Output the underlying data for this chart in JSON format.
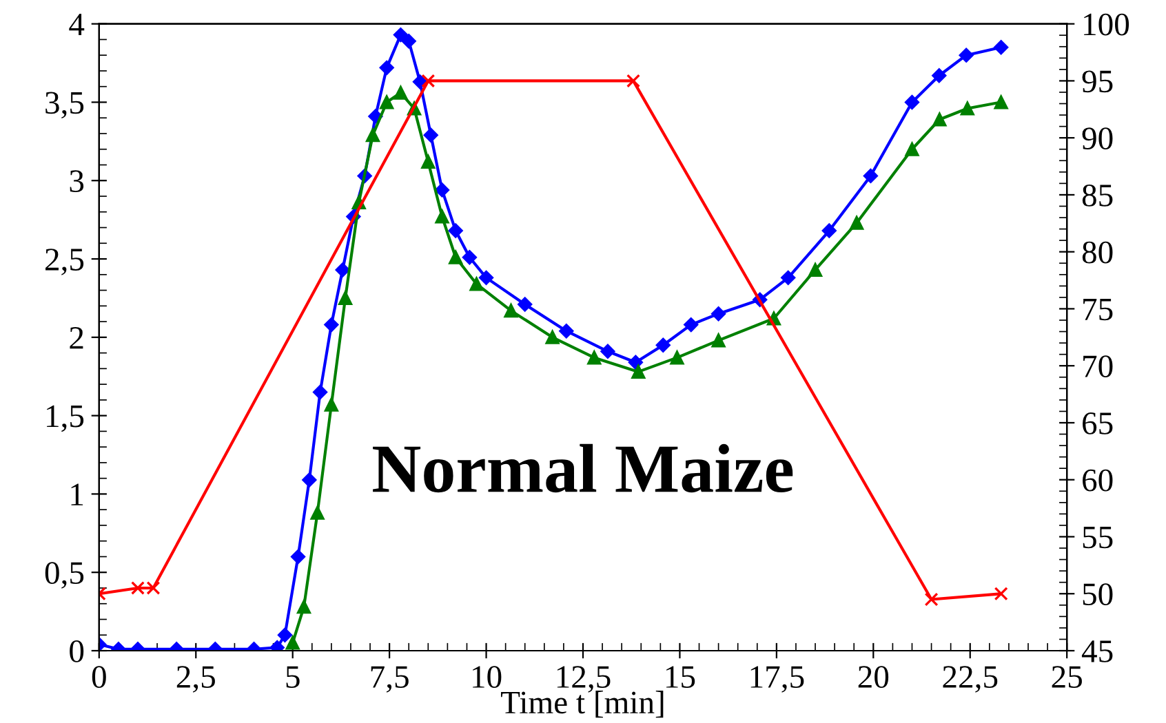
{
  "chart_data": {
    "type": "line",
    "xlabel": "Time t [min]",
    "annotations": [
      "Normal Maize"
    ],
    "grid": false,
    "legend": false,
    "line_style": "solid",
    "xlim": [
      0,
      25
    ],
    "xticks": [
      0,
      {
        "value": 2.5,
        "label": "2,5"
      },
      5,
      {
        "value": 7.5,
        "label": "7,5"
      },
      10,
      {
        "value": 12.5,
        "label": "12,5"
      },
      15,
      {
        "value": 17.5,
        "label": "17,5"
      },
      20,
      {
        "value": 22.5,
        "label": "22,5"
      },
      25
    ],
    "ylim": [
      0,
      4
    ],
    "yticks": [
      0,
      {
        "value": 0.5,
        "label": "0,5"
      },
      1,
      {
        "value": 1.5,
        "label": "1,5"
      },
      2,
      {
        "value": 2.5,
        "label": "2,5"
      },
      3,
      {
        "value": 3.5,
        "label": "3,5"
      },
      4
    ],
    "y2lim": [
      45,
      100
    ],
    "y2ticks": [
      45,
      50,
      55,
      60,
      65,
      70,
      75,
      80,
      85,
      90,
      95,
      100
    ],
    "series": [
      {
        "color": "#0000ff",
        "marker": "diamond",
        "x": [
          0,
          0.5,
          1,
          2,
          3,
          4,
          4.6,
          4.8,
          5.14,
          5.43,
          5.71,
          6.0,
          6.29,
          6.57,
          6.86,
          7.14,
          7.43,
          7.79,
          8.0,
          8.29,
          8.57,
          8.86,
          9.21,
          9.57,
          10,
          11,
          12.07,
          13.14,
          13.86,
          14.57,
          15.29,
          16,
          17.07,
          17.8,
          18.86,
          19.93,
          21.0,
          21.7,
          22.4,
          23.3
        ],
        "values": [
          0.04,
          0.01,
          0.01,
          0.01,
          0.01,
          0.01,
          0.02,
          0.1,
          0.6,
          1.09,
          1.65,
          2.08,
          2.43,
          2.77,
          3.03,
          3.41,
          3.72,
          3.93,
          3.89,
          3.63,
          3.29,
          2.94,
          2.68,
          2.51,
          2.38,
          2.21,
          2.04,
          1.91,
          1.84,
          1.95,
          2.08,
          2.15,
          2.24,
          2.38,
          2.68,
          3.03,
          3.5,
          3.67,
          3.8,
          3.85
        ]
      },
      {
        "color": "#008000",
        "marker": "triangle",
        "x": [
          5,
          5.29,
          5.64,
          6.0,
          6.36,
          6.71,
          7.07,
          7.43,
          7.79,
          8.14,
          8.5,
          8.86,
          9.21,
          9.75,
          10.64,
          11.71,
          12.79,
          13.93,
          14.93,
          16,
          17.43,
          18.5,
          19.57,
          21.0,
          21.71,
          22.43,
          23.3
        ],
        "values": [
          0.05,
          0.28,
          0.88,
          1.57,
          2.25,
          2.86,
          3.29,
          3.5,
          3.56,
          3.46,
          3.12,
          2.77,
          2.51,
          2.34,
          2.17,
          2.0,
          1.87,
          1.78,
          1.87,
          1.98,
          2.12,
          2.43,
          2.73,
          3.2,
          3.39,
          3.46,
          3.5
        ]
      },
      {
        "color": "#ff0000",
        "marker": "cross",
        "axis": "y2",
        "x": [
          0,
          1,
          1.4,
          8.5,
          13.8,
          21.5,
          23.3
        ],
        "values": [
          50,
          50.5,
          50.5,
          95,
          95,
          49.5,
          50
        ]
      }
    ]
  }
}
